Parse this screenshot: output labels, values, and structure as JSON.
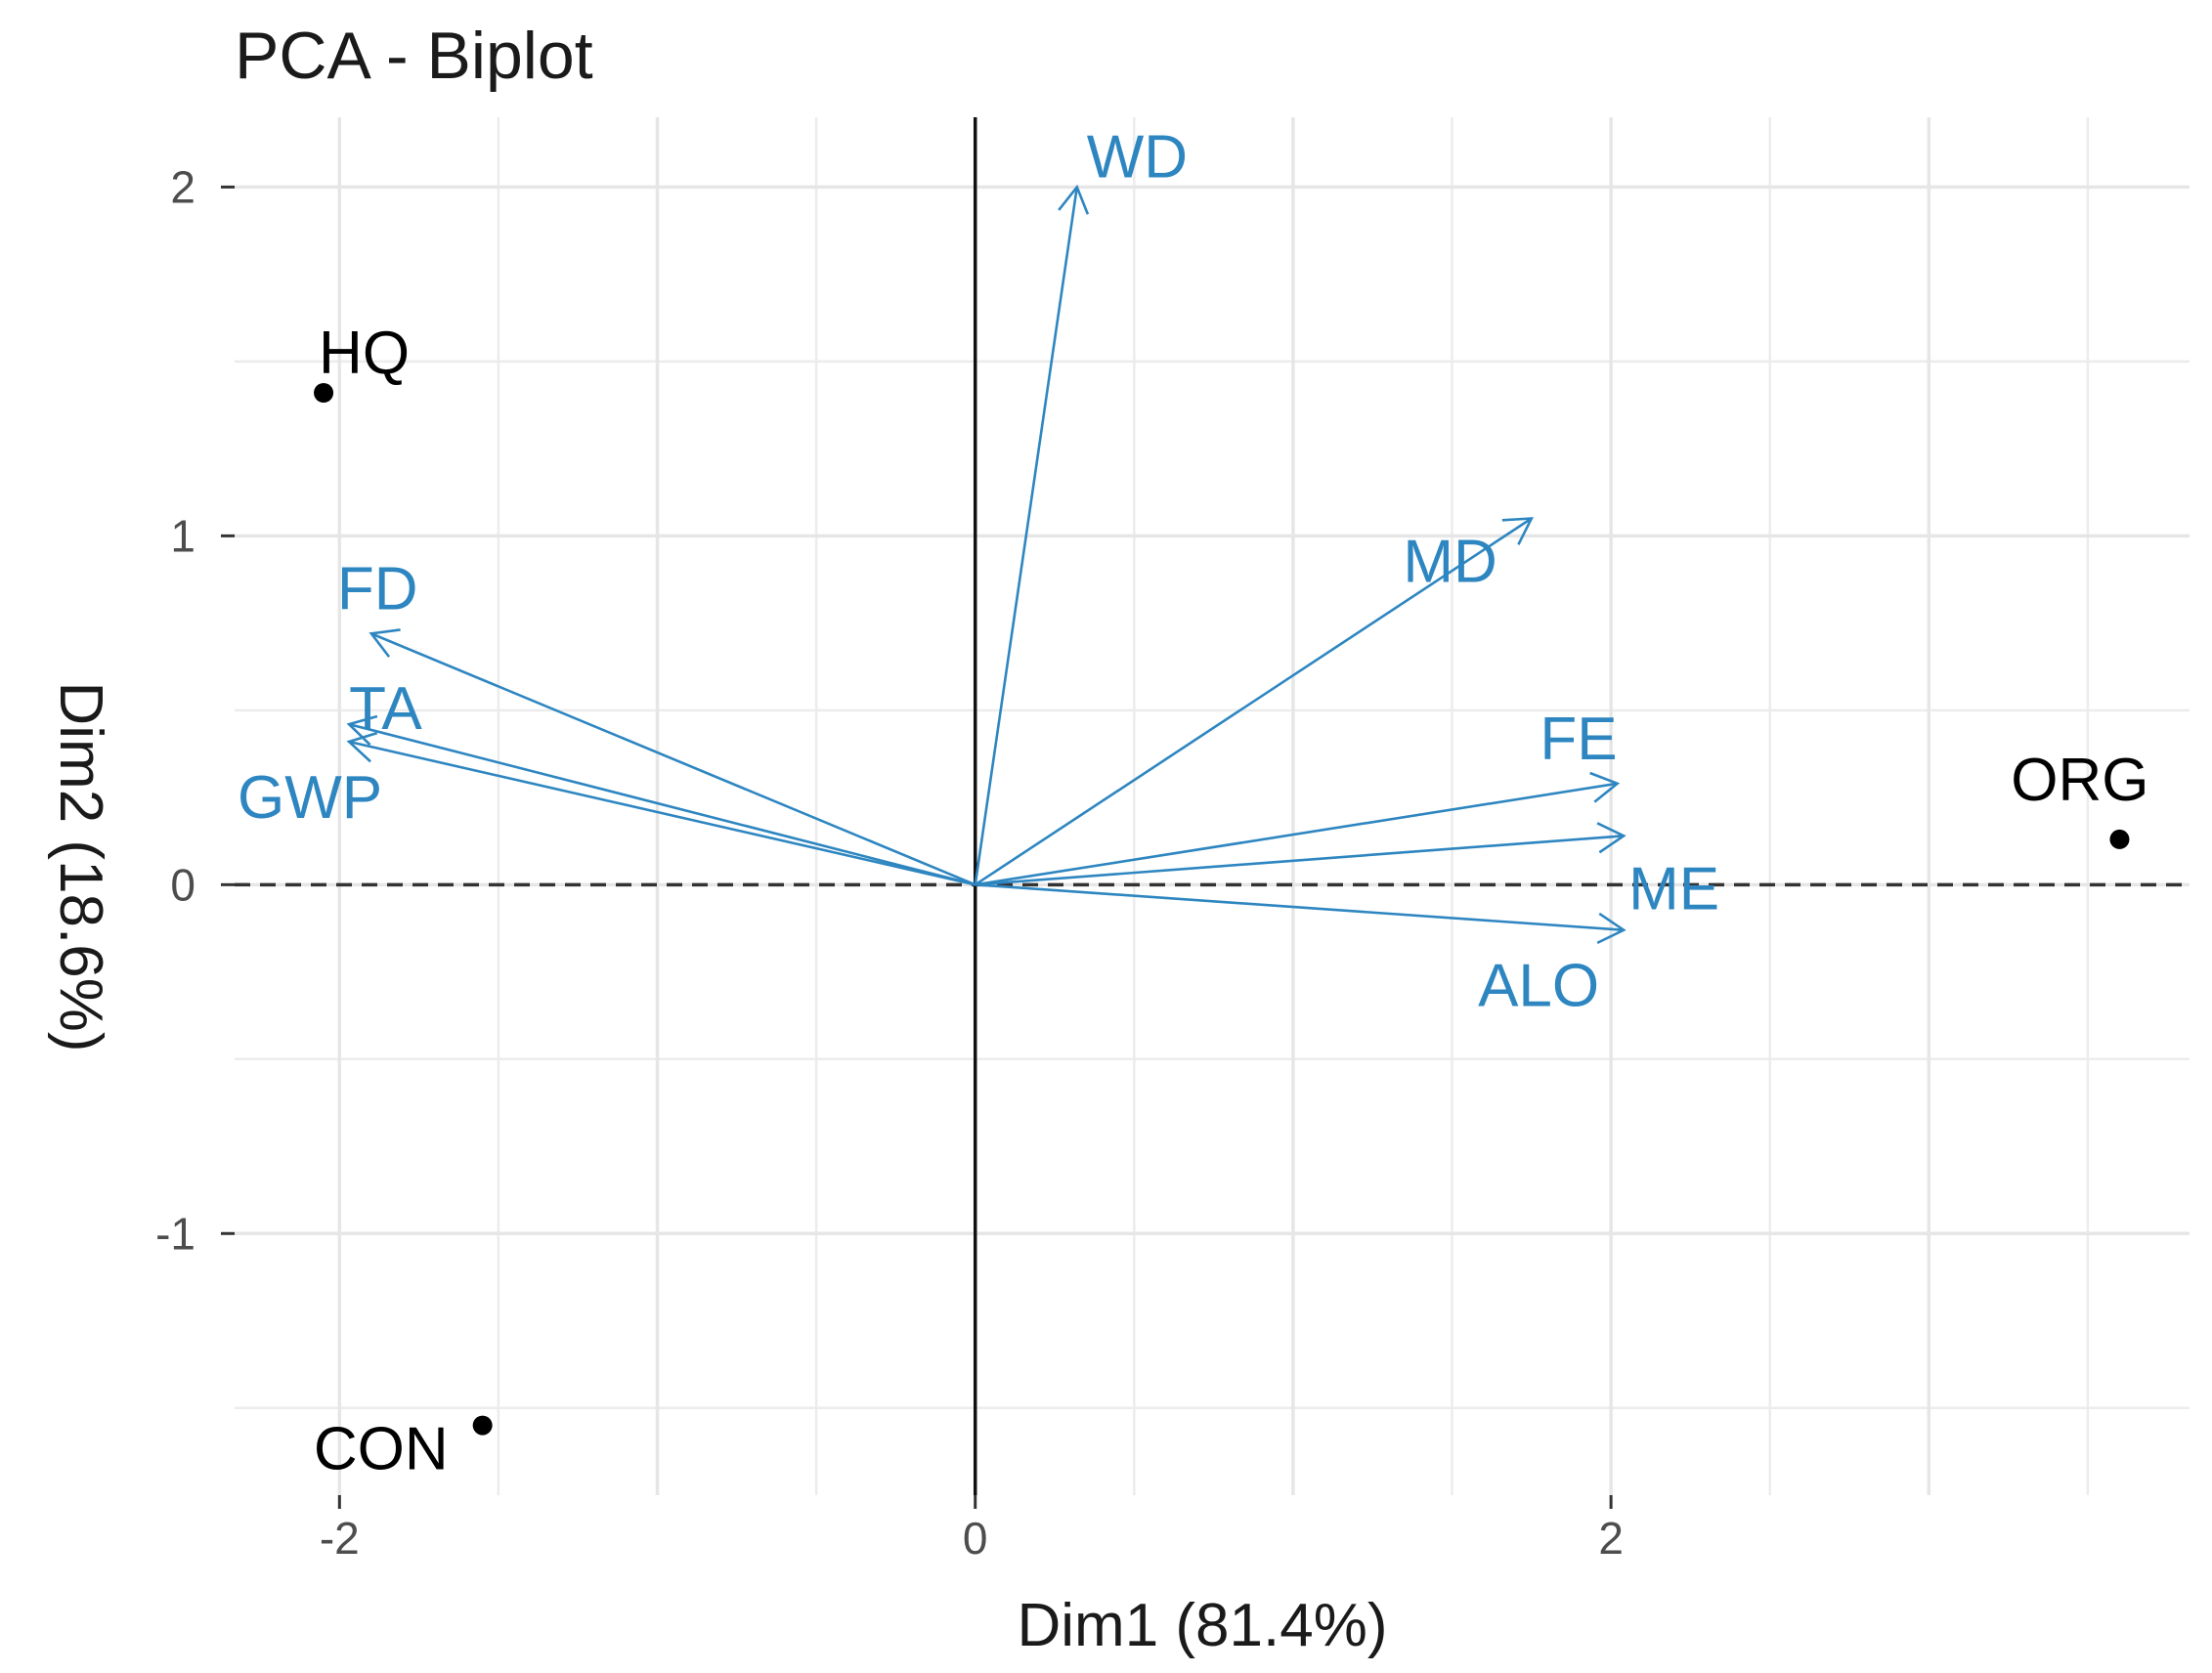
{
  "chart_data": {
    "type": "scatter",
    "subtype": "pca-biplot",
    "title": "PCA - Biplot",
    "xlabel": "Dim1 (81.4%)",
    "ylabel": "Dim2 (18.6%)",
    "xlim": [
      -2.33,
      3.82
    ],
    "ylim": [
      -1.75,
      2.2
    ],
    "x_ticks": [
      -2,
      0,
      2
    ],
    "y_ticks": [
      -1,
      0,
      1,
      2
    ],
    "grid": true,
    "colors": {
      "variables": "#2e86c1",
      "individuals": "#000000"
    },
    "individuals": [
      {
        "name": "HQ",
        "x": -2.05,
        "y": 1.41
      },
      {
        "name": "CON",
        "x": -1.55,
        "y": -1.55
      },
      {
        "name": "ORG",
        "x": 3.6,
        "y": 0.13
      }
    ],
    "variables": [
      {
        "name": "WD",
        "x": 0.32,
        "y": 2.0
      },
      {
        "name": "MD",
        "x": 1.75,
        "y": 1.05
      },
      {
        "name": "FD",
        "x": -1.9,
        "y": 0.72
      },
      {
        "name": "TA",
        "x": -1.97,
        "y": 0.46
      },
      {
        "name": "GWP",
        "x": -1.97,
        "y": 0.41
      },
      {
        "name": "FE",
        "x": 2.02,
        "y": 0.29
      },
      {
        "name": "ME",
        "x": 2.04,
        "y": 0.14
      },
      {
        "name": "ALO",
        "x": 2.04,
        "y": -0.13
      }
    ]
  }
}
